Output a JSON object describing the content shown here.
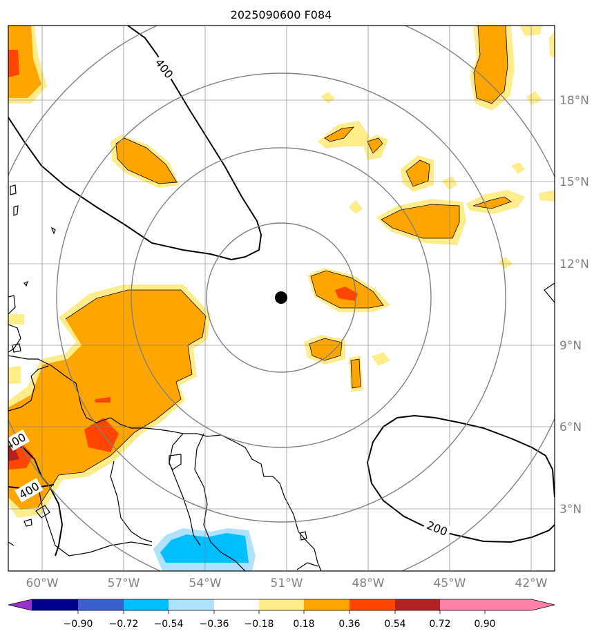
{
  "title": "2025090600 F084",
  "lat_labels": [
    "18°N",
    "15°N",
    "12°N",
    "9°N",
    "6°N",
    "3°N"
  ],
  "lon_labels": [
    "60°W",
    "57°W",
    "54°W",
    "51°W",
    "48°W",
    "45°W",
    "42°W"
  ],
  "contour_labels": [
    "400",
    "400",
    "400",
    "200"
  ],
  "colorbar": {
    "ticks": [
      "−0.90",
      "−0.72",
      "−0.54",
      "−0.36",
      "−0.18",
      "0.18",
      "0.36",
      "0.54",
      "0.72",
      "0.90"
    ],
    "colors": [
      "#9932cc",
      "#00008b",
      "#3a5fcd",
      "#00bfff",
      "#b0e2ff",
      "#ffffff",
      "#ffec8b",
      "#ffa500",
      "#ff4500",
      "#b22222",
      "#ff82ab"
    ]
  },
  "storm_center": {
    "lat": 10.7,
    "lon": -50.8
  },
  "map_extent": {
    "lon": [
      -61.2,
      -41.1
    ],
    "lat": [
      1.0,
      20.0
    ]
  }
}
